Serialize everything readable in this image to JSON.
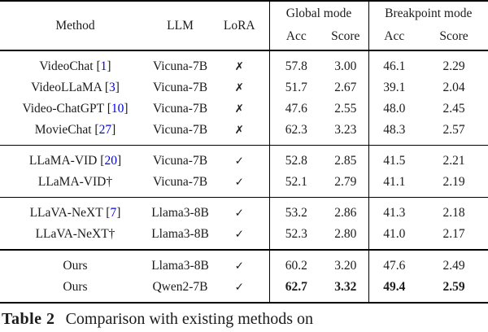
{
  "table": {
    "header": {
      "method": "Method",
      "llm": "LLM",
      "lora": "LoRA",
      "global_mode": "Global mode",
      "breakpoint_mode": "Breakpoint mode",
      "acc": "Acc",
      "score": "Score"
    },
    "glyphs": {
      "check": "✓",
      "cross": "✗",
      "dagger": "†"
    },
    "colors": {
      "cite_blue": "#0000EE",
      "text": "#1b1b1b",
      "rule": "#000000"
    },
    "groups": [
      {
        "rows": [
          {
            "method": "VideoChat",
            "cite": "1",
            "dagger": false,
            "llm": "Vicuna-7B",
            "lora": false,
            "g_acc": "57.8",
            "g_score": "3.00",
            "b_acc": "46.1",
            "b_score": "2.29",
            "bold": false
          },
          {
            "method": "VideoLLaMA",
            "cite": "3",
            "dagger": false,
            "llm": "Vicuna-7B",
            "lora": false,
            "g_acc": "51.7",
            "g_score": "2.67",
            "b_acc": "39.1",
            "b_score": "2.04",
            "bold": false
          },
          {
            "method": "Video-ChatGPT",
            "cite": "10",
            "dagger": false,
            "llm": "Vicuna-7B",
            "lora": false,
            "g_acc": "47.6",
            "g_score": "2.55",
            "b_acc": "48.0",
            "b_score": "2.45",
            "bold": false
          },
          {
            "method": "MovieChat",
            "cite": "27",
            "dagger": false,
            "llm": "Vicuna-7B",
            "lora": false,
            "g_acc": "62.3",
            "g_score": "3.23",
            "b_acc": "48.3",
            "b_score": "2.57",
            "bold": false
          }
        ]
      },
      {
        "rows": [
          {
            "method": "LLaMA-VID",
            "cite": "20",
            "dagger": false,
            "llm": "Vicuna-7B",
            "lora": true,
            "g_acc": "52.8",
            "g_score": "2.85",
            "b_acc": "41.5",
            "b_score": "2.21",
            "bold": false
          },
          {
            "method": "LLaMA-VID",
            "cite": null,
            "dagger": true,
            "llm": "Vicuna-7B",
            "lora": true,
            "g_acc": "52.1",
            "g_score": "2.79",
            "b_acc": "41.1",
            "b_score": "2.19",
            "bold": false
          }
        ]
      },
      {
        "rows": [
          {
            "method": "LLaVA-NeXT",
            "cite": "7",
            "dagger": false,
            "llm": "Llama3-8B",
            "lora": true,
            "g_acc": "53.2",
            "g_score": "2.86",
            "b_acc": "41.3",
            "b_score": "2.18",
            "bold": false
          },
          {
            "method": "LLaVA-NeXT",
            "cite": null,
            "dagger": true,
            "llm": "Llama3-8B",
            "lora": true,
            "g_acc": "52.3",
            "g_score": "2.80",
            "b_acc": "41.0",
            "b_score": "2.17",
            "bold": false
          }
        ]
      },
      {
        "rows": [
          {
            "method": "Ours",
            "cite": null,
            "dagger": false,
            "llm": "Llama3-8B",
            "lora": true,
            "g_acc": "60.2",
            "g_score": "3.20",
            "b_acc": "47.6",
            "b_score": "2.49",
            "bold": false
          },
          {
            "method": "Ours",
            "cite": null,
            "dagger": false,
            "llm": "Qwen2-7B",
            "lora": true,
            "g_acc": "62.7",
            "g_score": "3.32",
            "b_acc": "49.4",
            "b_score": "2.59",
            "bold": true
          }
        ]
      }
    ]
  },
  "caption": {
    "label": "Table 2",
    "text": "Comparison with existing methods on"
  }
}
